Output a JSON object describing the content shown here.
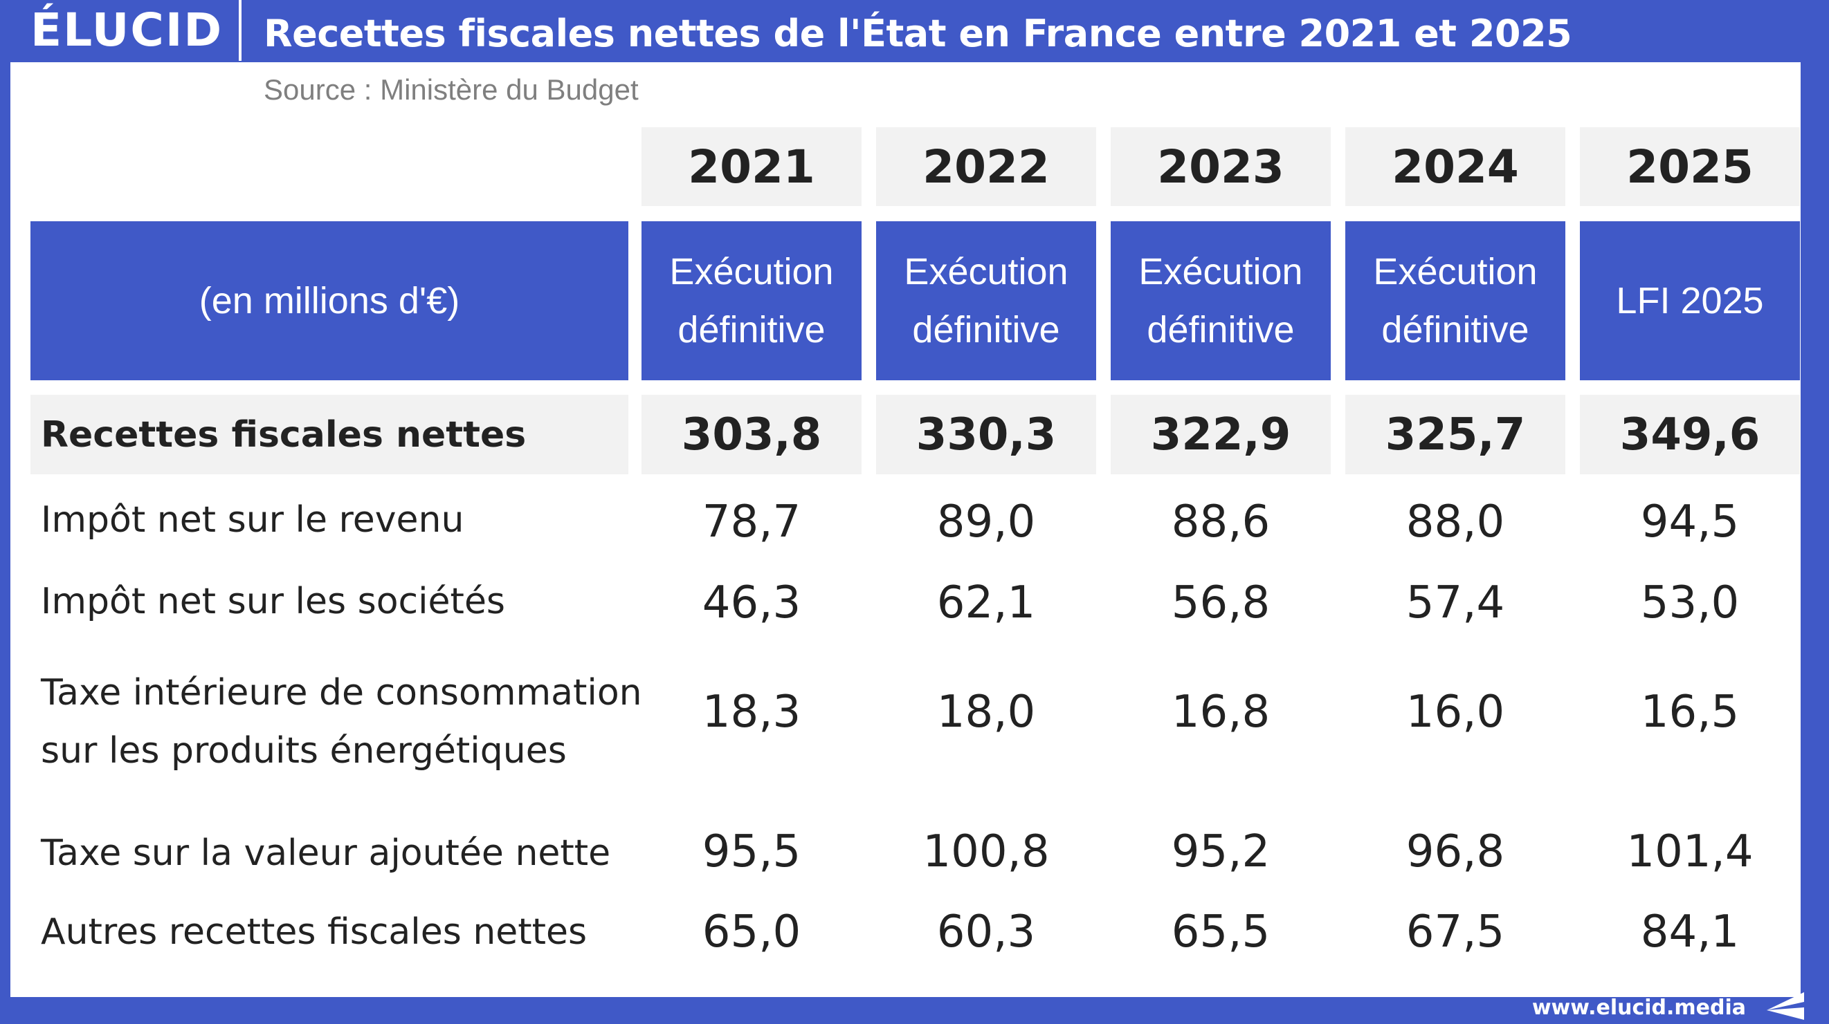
{
  "header": {
    "logo": "ÉLUCID",
    "title": "Recettes fiscales nettes de l'État en France entre 2021 et 2025",
    "source": "Source : Ministère du Budget"
  },
  "footer": {
    "url": "www.elucid.media"
  },
  "chart_data": {
    "type": "table",
    "title": "Recettes fiscales nettes de l'État en France entre 2021 et 2025",
    "unit_label": "(en millions d'€)",
    "columns": [
      {
        "year": "2021",
        "status": "Exécution\ndéfinitive"
      },
      {
        "year": "2022",
        "status": "Exécution\ndéfinitive"
      },
      {
        "year": "2023",
        "status": "Exécution\ndéfinitive"
      },
      {
        "year": "2024",
        "status": "Exécution\ndéfinitive"
      },
      {
        "year": "2025",
        "status": "LFI 2025"
      }
    ],
    "total": {
      "label": "Recettes fiscales nettes",
      "values": [
        "303,8",
        "330,3",
        "322,9",
        "325,7",
        "349,6"
      ]
    },
    "rows": [
      {
        "label": "Impôt net sur le revenu",
        "values": [
          "78,7",
          "89,0",
          "88,6",
          "88,0",
          "94,5"
        ]
      },
      {
        "label": "Impôt net sur les sociétés",
        "values": [
          "46,3",
          "62,1",
          "56,8",
          "57,4",
          "53,0"
        ]
      },
      {
        "label": "Taxe intérieure de consommation\nsur les produits énergétiques",
        "values": [
          "18,3",
          "18,0",
          "16,8",
          "16,0",
          "16,5"
        ]
      },
      {
        "label": "Taxe sur la valeur ajoutée nette",
        "values": [
          "95,5",
          "100,8",
          "95,2",
          "96,8",
          "101,4"
        ]
      },
      {
        "label": "Autres recettes fiscales nettes",
        "values": [
          "65,0",
          "60,3",
          "65,5",
          "67,5",
          "84,1"
        ]
      }
    ]
  },
  "colors": {
    "brand_blue": "#4059c7",
    "header_gray": "#f2f2f2",
    "text": "#222222",
    "source_gray": "#7f7f7f"
  }
}
